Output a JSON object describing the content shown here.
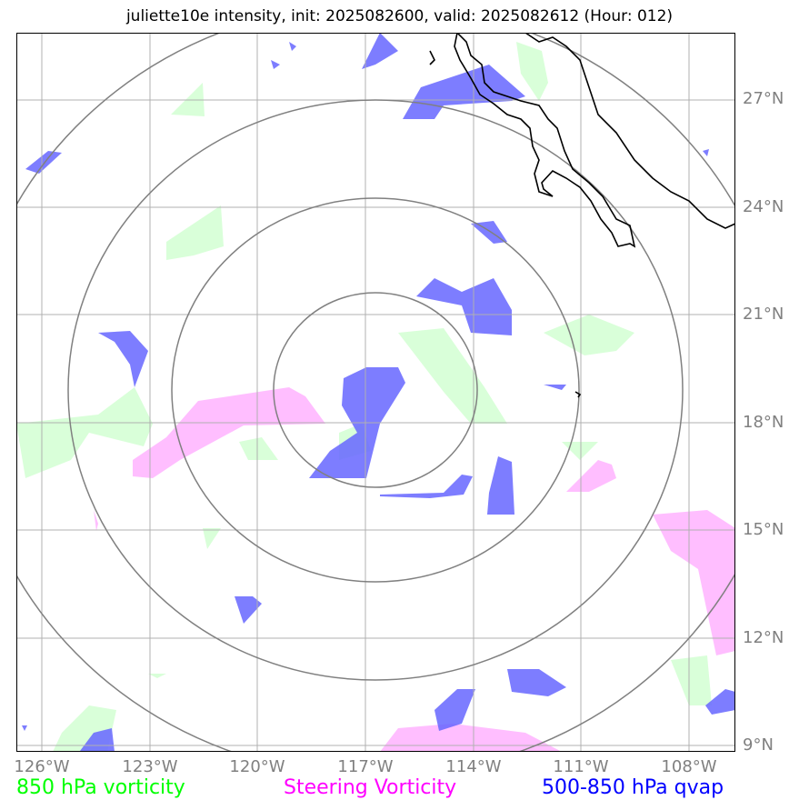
{
  "title": "juliette10e intensity, init: 2025082600, valid: 2025082612 (Hour: 012)",
  "lat_labels": [
    "27°N",
    "24°N",
    "21°N",
    "18°N",
    "15°N",
    "12°N",
    "9°N"
  ],
  "lon_labels": [
    "126°W",
    "123°W",
    "120°W",
    "117°W",
    "114°W",
    "111°W",
    "108°W"
  ],
  "legend": {
    "vorticity_850": "850 hPa vorticity",
    "steering_vorticity": "Steering Vorticity",
    "qvap_500_850": "500-850 hPa qvap"
  },
  "colors": {
    "vorticity_850": "#00ff00",
    "steering_vorticity": "#ff00ff",
    "qvap_500_850": "#0000ff",
    "grid": "#808080",
    "coast": "#000000"
  }
}
